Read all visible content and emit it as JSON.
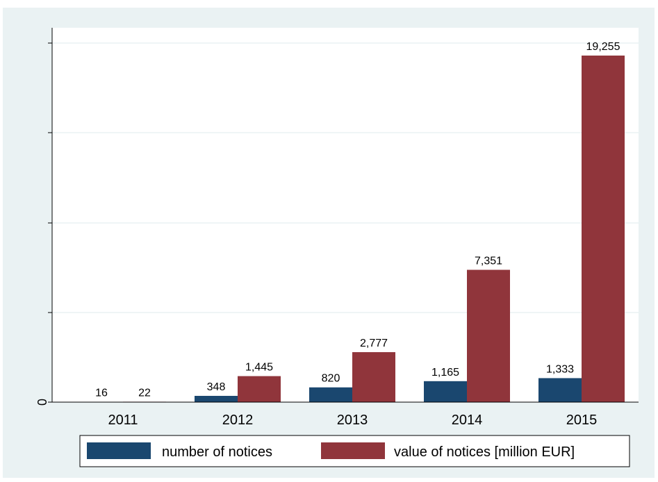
{
  "chart_data": {
    "type": "bar",
    "categories": [
      "2011",
      "2012",
      "2013",
      "2014",
      "2015"
    ],
    "series": [
      {
        "name": "number of notices",
        "values": [
          16,
          348,
          820,
          1165,
          1333
        ],
        "labels": [
          "16",
          "348",
          "820",
          "1,165",
          "1,333"
        ],
        "color": "#1a476f"
      },
      {
        "name": "value of notices [million EUR]",
        "values": [
          22,
          1445,
          2777,
          7351,
          19255
        ],
        "labels": [
          "22",
          "1,445",
          "2,777",
          "7,351",
          "19,255"
        ],
        "color": "#90353b"
      }
    ],
    "y_tick_labels": [
      "0"
    ],
    "ylim": [
      0,
      19255
    ],
    "grid": true,
    "legend": "bottom"
  },
  "colors": {
    "outer_background": "#eaf2f3",
    "plot_background": "#ffffff",
    "grid": "#eaf2f3"
  }
}
